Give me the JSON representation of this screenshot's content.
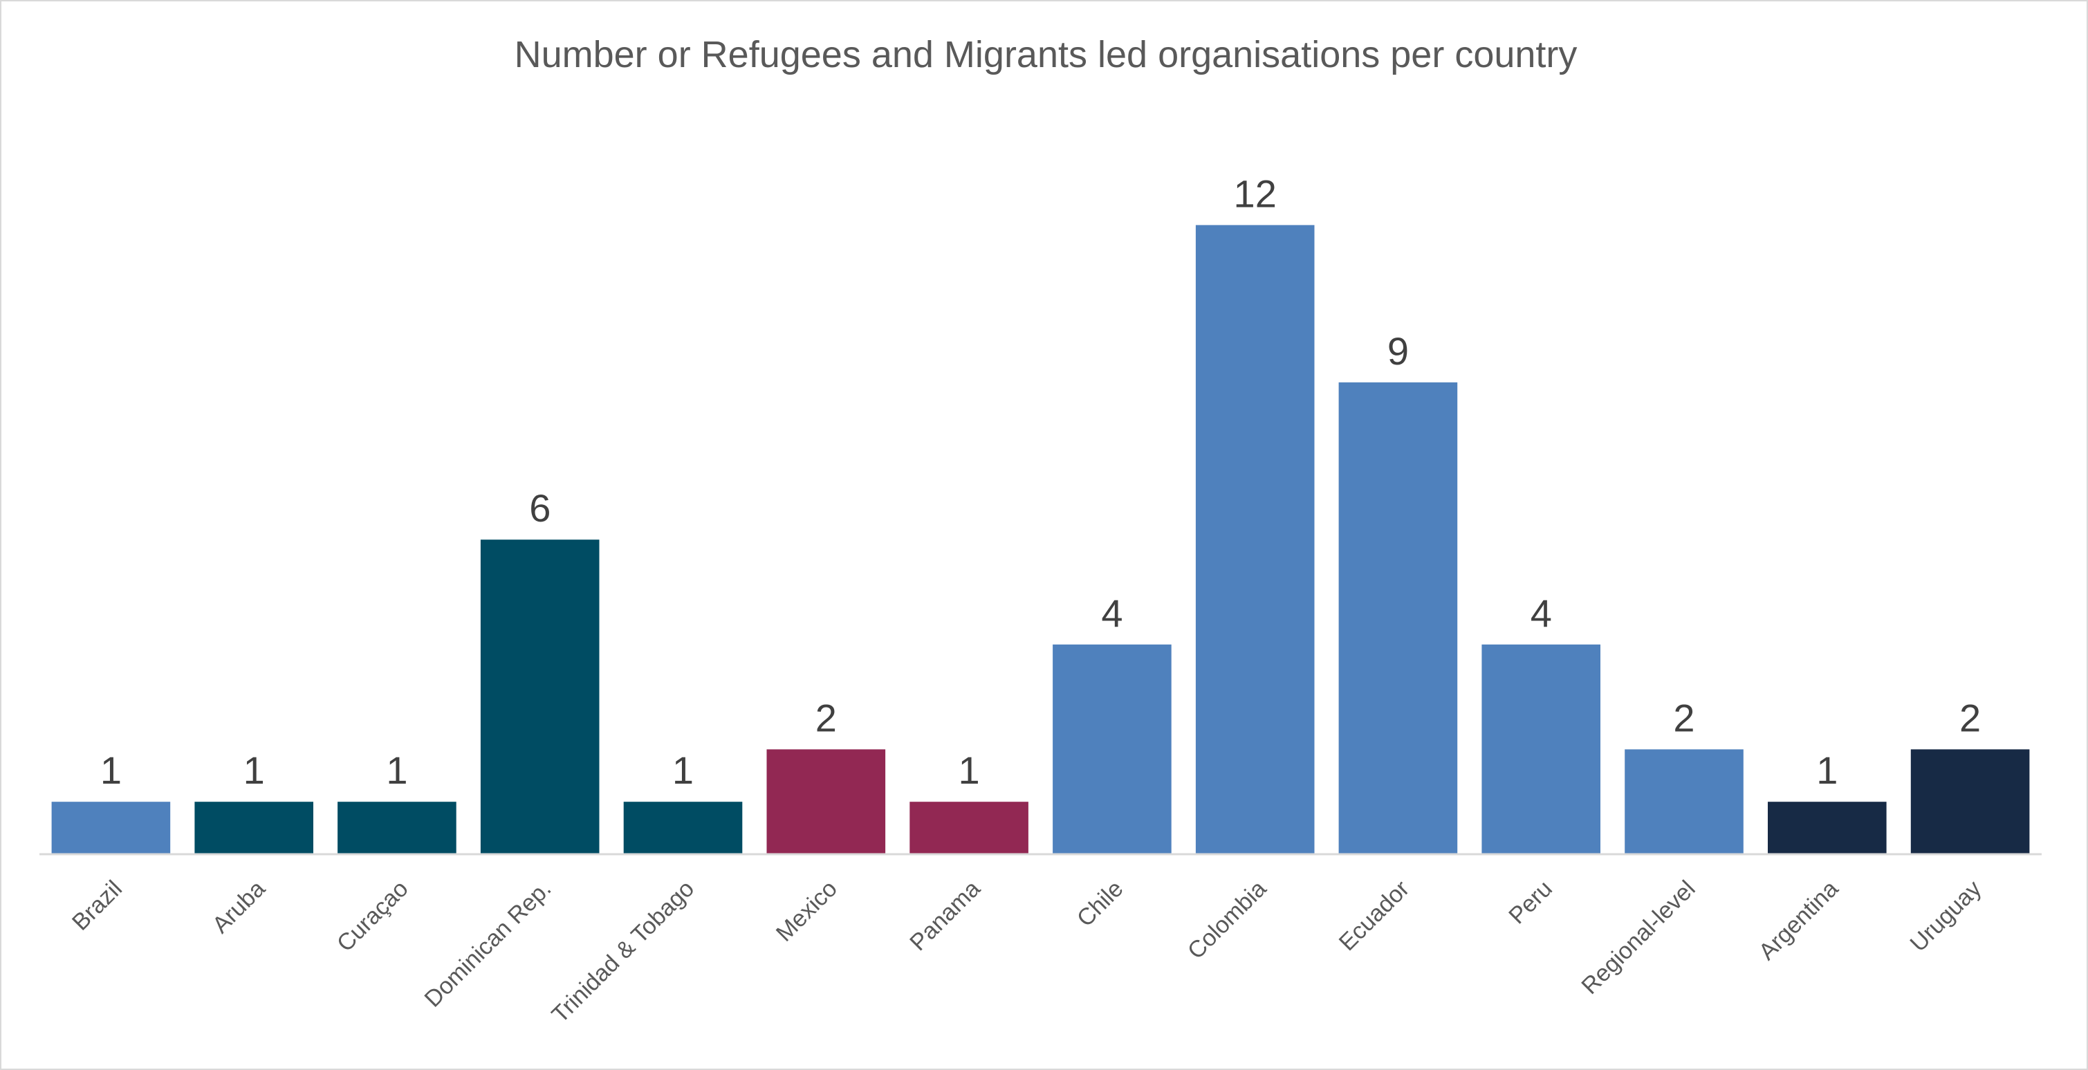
{
  "chart_data": {
    "type": "bar",
    "title": "Number or Refugees and Migrants led organisations per country",
    "xlabel": "",
    "ylabel": "",
    "categories": [
      "Brazil",
      "Aruba",
      "Curaçao",
      "Dominican Rep.",
      "Trinidad & Tobago",
      "Mexico",
      "Panama",
      "Chile",
      "Colombia",
      "Ecuador",
      "Peru",
      "Regional-level",
      "Argentina",
      "Uruguay"
    ],
    "values": [
      1,
      1,
      1,
      6,
      1,
      2,
      1,
      4,
      12,
      9,
      4,
      2,
      1,
      2
    ],
    "bar_colors": [
      "#4f81bd",
      "#004c63",
      "#004c63",
      "#004c63",
      "#004c63",
      "#922853",
      "#922853",
      "#4f81bd",
      "#4f81bd",
      "#4f81bd",
      "#4f81bd",
      "#4f81bd",
      "#172a45",
      "#172a45"
    ],
    "data_labels": true,
    "ylim": [
      0,
      12
    ],
    "grid": false,
    "legend": "none",
    "axis_color": "#d9d9d9"
  }
}
